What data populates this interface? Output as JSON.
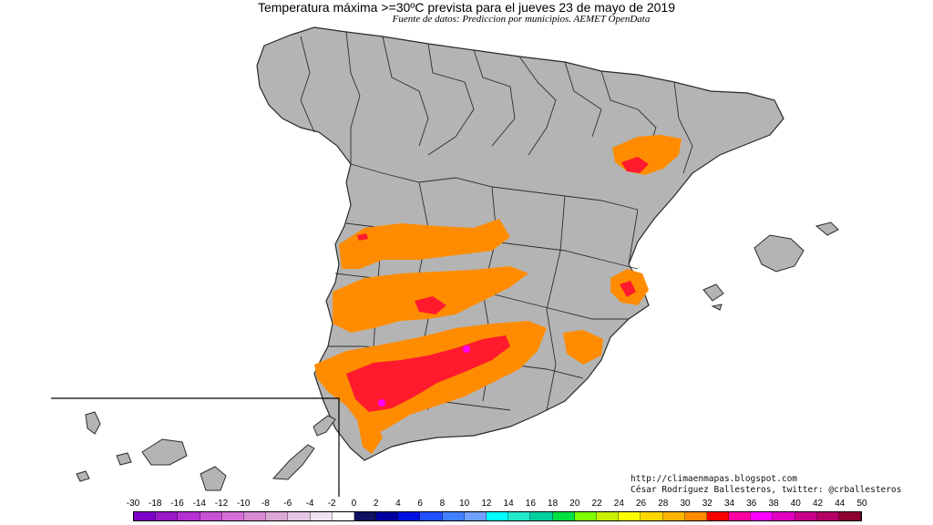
{
  "title": "Temperatura máxima >=30ºC prevista para el jueves 23 de mayo de 2019",
  "subtitle": "Fuente de datos: Prediccion por municipios. AEMET OpenData",
  "credits": {
    "blog": "http://climaenmapas.blogspot.com",
    "author": "César Rodríguez Ballesteros, twitter: @crballesteros"
  },
  "colors": {
    "land": "#b4b4b4",
    "borders": "#3a3a3a",
    "orange": "#ff8c00",
    "red": "#ff1a2e",
    "darkred": "#c8002a",
    "magenta": "#ff00ff"
  },
  "scale": {
    "labels": [
      "-30",
      "-18",
      "-16",
      "-14",
      "-12",
      "-10",
      "-8",
      "-6",
      "-4",
      "-2",
      "0",
      "2",
      "4",
      "6",
      "8",
      "10",
      "12",
      "14",
      "16",
      "18",
      "20",
      "22",
      "24",
      "26",
      "28",
      "30",
      "32",
      "34",
      "36",
      "38",
      "40",
      "42",
      "44",
      "50"
    ],
    "colors": [
      "#7b00c8",
      "#9c19c8",
      "#b62fd2",
      "#c850d2",
      "#d46ed6",
      "#d88bd4",
      "#dca8d6",
      "#e4c6e2",
      "#f0e4f0",
      "#ffffff",
      "#101060",
      "#0000a0",
      "#0010e0",
      "#2050ff",
      "#4080ff",
      "#70a0ff",
      "#00ffff",
      "#20e8c8",
      "#00d0a0",
      "#00e040",
      "#80ff00",
      "#c8f000",
      "#ffff00",
      "#ffd700",
      "#ffb400",
      "#ff8c00",
      "#ff0000",
      "#ff00a0",
      "#ff00ff",
      "#e000c0",
      "#c8008c",
      "#b40064",
      "#8c0032"
    ]
  }
}
